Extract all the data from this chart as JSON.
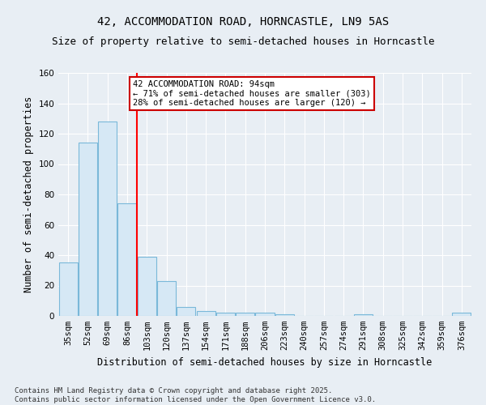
{
  "title_line1": "42, ACCOMMODATION ROAD, HORNCASTLE, LN9 5AS",
  "title_line2": "Size of property relative to semi-detached houses in Horncastle",
  "xlabel": "Distribution of semi-detached houses by size in Horncastle",
  "ylabel": "Number of semi-detached properties",
  "categories": [
    "35sqm",
    "52sqm",
    "69sqm",
    "86sqm",
    "103sqm",
    "120sqm",
    "137sqm",
    "154sqm",
    "171sqm",
    "188sqm",
    "206sqm",
    "223sqm",
    "240sqm",
    "257sqm",
    "274sqm",
    "291sqm",
    "308sqm",
    "325sqm",
    "342sqm",
    "359sqm",
    "376sqm"
  ],
  "values": [
    35,
    114,
    128,
    74,
    39,
    23,
    6,
    3,
    2,
    2,
    2,
    1,
    0,
    0,
    0,
    1,
    0,
    0,
    0,
    0,
    2
  ],
  "bar_color": "#d6e8f5",
  "bar_edge_color": "#7ab8d9",
  "red_line_x": 3.5,
  "annotation_text": "42 ACCOMMODATION ROAD: 94sqm\n← 71% of semi-detached houses are smaller (303)\n28% of semi-detached houses are larger (120) →",
  "annotation_box_color": "#ffffff",
  "annotation_box_edge_color": "#cc0000",
  "ylim": [
    0,
    160
  ],
  "yticks": [
    0,
    20,
    40,
    60,
    80,
    100,
    120,
    140,
    160
  ],
  "footer_line1": "Contains HM Land Registry data © Crown copyright and database right 2025.",
  "footer_line2": "Contains public sector information licensed under the Open Government Licence v3.0.",
  "bg_color": "#e8eef4",
  "grid_color": "#ffffff",
  "title_fontsize": 10,
  "subtitle_fontsize": 9,
  "axis_label_fontsize": 8.5,
  "tick_fontsize": 7.5,
  "annotation_fontsize": 7.5,
  "footer_fontsize": 6.5
}
